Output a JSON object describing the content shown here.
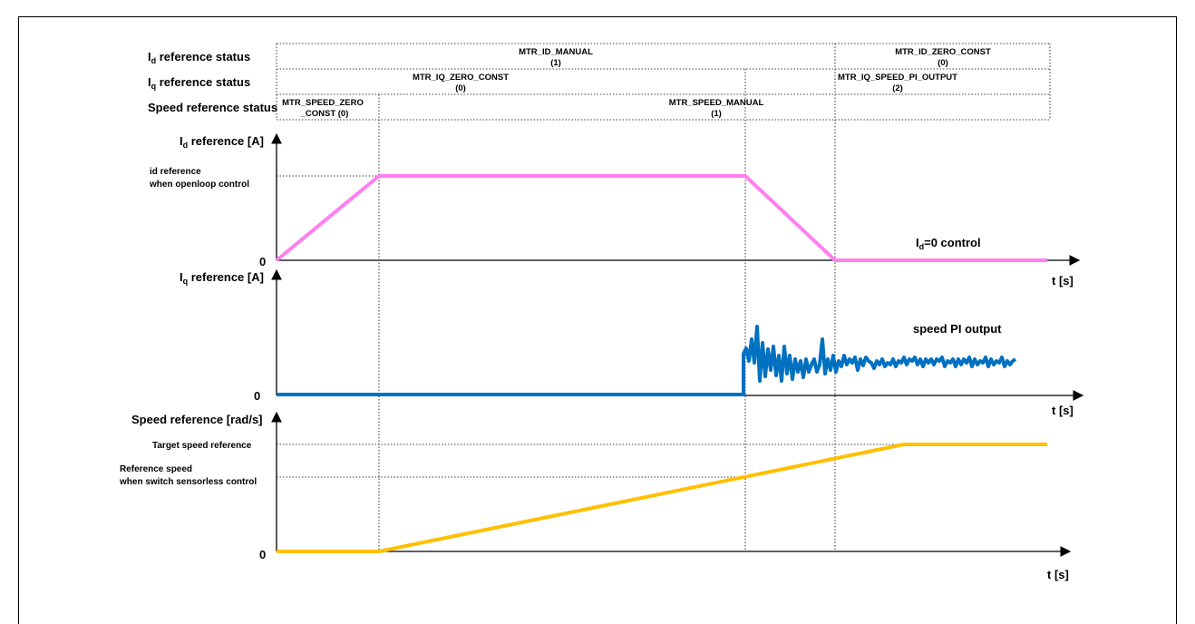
{
  "status_table": {
    "id_row": {
      "label": "I",
      "label_sub": "d",
      "label_rest": " reference status",
      "cells": [
        {
          "line1": "MTR_ID_MANUAL",
          "line2": "(1)"
        },
        {
          "line1": "MTR_ID_ZERO_CONST",
          "line2": "(0)"
        }
      ]
    },
    "iq_row": {
      "label": "I",
      "label_sub": "q",
      "label_rest": " reference status",
      "cells": [
        {
          "line1": "MTR_IQ_ZERO_CONST",
          "line2": "(0)"
        },
        {
          "line1": "MTR_IQ_SPEED_PI_OUTPUT",
          "line2": "(2)"
        }
      ]
    },
    "speed_row": {
      "label": "Speed reference status",
      "cells": [
        {
          "line1": "MTR_SPEED_ZERO",
          "line2": "_CONST (0)"
        },
        {
          "line1": "MTR_SPEED_MANUAL",
          "line2": "(1)"
        }
      ]
    }
  },
  "charts": {
    "id": {
      "title": "I",
      "title_sub": "d",
      "title_rest": " reference [A]",
      "level_label_1": "id reference",
      "level_label_2": "when openloop control",
      "zero": "0",
      "xlabel": "t [s]",
      "note": "I",
      "note_sub": "d",
      "note_rest": "=0 control",
      "color": "#ff7ff0"
    },
    "iq": {
      "title": "I",
      "title_sub": "q",
      "title_rest": " reference [A]",
      "zero": "0",
      "xlabel": "t [s]",
      "note": "speed PI output",
      "color": "#0070c0"
    },
    "speed": {
      "title": "Speed reference [rad/s]",
      "level_label_target": "Target speed reference",
      "level_label_ref_1": "Reference speed",
      "level_label_ref_2": "when switch sensorless control",
      "zero": "0",
      "xlabel": "t [s]",
      "color": "#ffc000"
    }
  },
  "chart_data": [
    {
      "type": "line",
      "series": [
        {
          "values": [
            0,
            1,
            1,
            0,
            0
          ]
        }
      ],
      "x": [
        0,
        1,
        2,
        3,
        4
      ],
      "note": "piecewise linear: ramp up, hold, ramp down, zero"
    }
  ]
}
